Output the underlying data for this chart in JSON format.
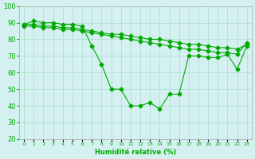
{
  "line1": [
    89,
    91,
    90,
    90,
    89,
    89,
    88,
    76,
    65,
    50,
    50,
    40,
    40,
    42,
    38,
    47,
    47,
    70,
    70,
    69,
    69,
    71,
    62,
    76
  ],
  "line2": [
    89,
    89,
    88,
    88,
    87,
    87,
    86,
    85,
    84,
    83,
    83,
    82,
    81,
    80,
    80,
    79,
    78,
    77,
    77,
    76,
    75,
    75,
    74,
    77
  ],
  "line3": [
    88,
    88,
    87,
    87,
    86,
    86,
    85,
    84,
    83,
    82,
    81,
    80,
    79,
    78,
    77,
    76,
    75,
    74,
    74,
    73,
    72,
    72,
    71,
    78
  ],
  "x": [
    0,
    1,
    2,
    3,
    4,
    5,
    6,
    7,
    8,
    9,
    10,
    11,
    12,
    13,
    14,
    15,
    16,
    17,
    18,
    19,
    20,
    21,
    22,
    23
  ],
  "xtick_labels": [
    "0",
    "1",
    "2",
    "3",
    "4",
    "5",
    "6",
    "7",
    "8",
    "9",
    "10",
    "11",
    "12",
    "13",
    "14",
    "15",
    "16",
    "17",
    "18",
    "19",
    "20",
    "21",
    "22",
    "23"
  ],
  "ylim": [
    20,
    100
  ],
  "yticks": [
    20,
    30,
    40,
    50,
    60,
    70,
    80,
    90,
    100
  ],
  "xlabel": "Humidité relative (%)",
  "line_color": "#00aa00",
  "bg_color": "#d4f0f0",
  "grid_color": "#aaddcc",
  "text_color": "#00aa00",
  "tick_color": "#00aa00"
}
